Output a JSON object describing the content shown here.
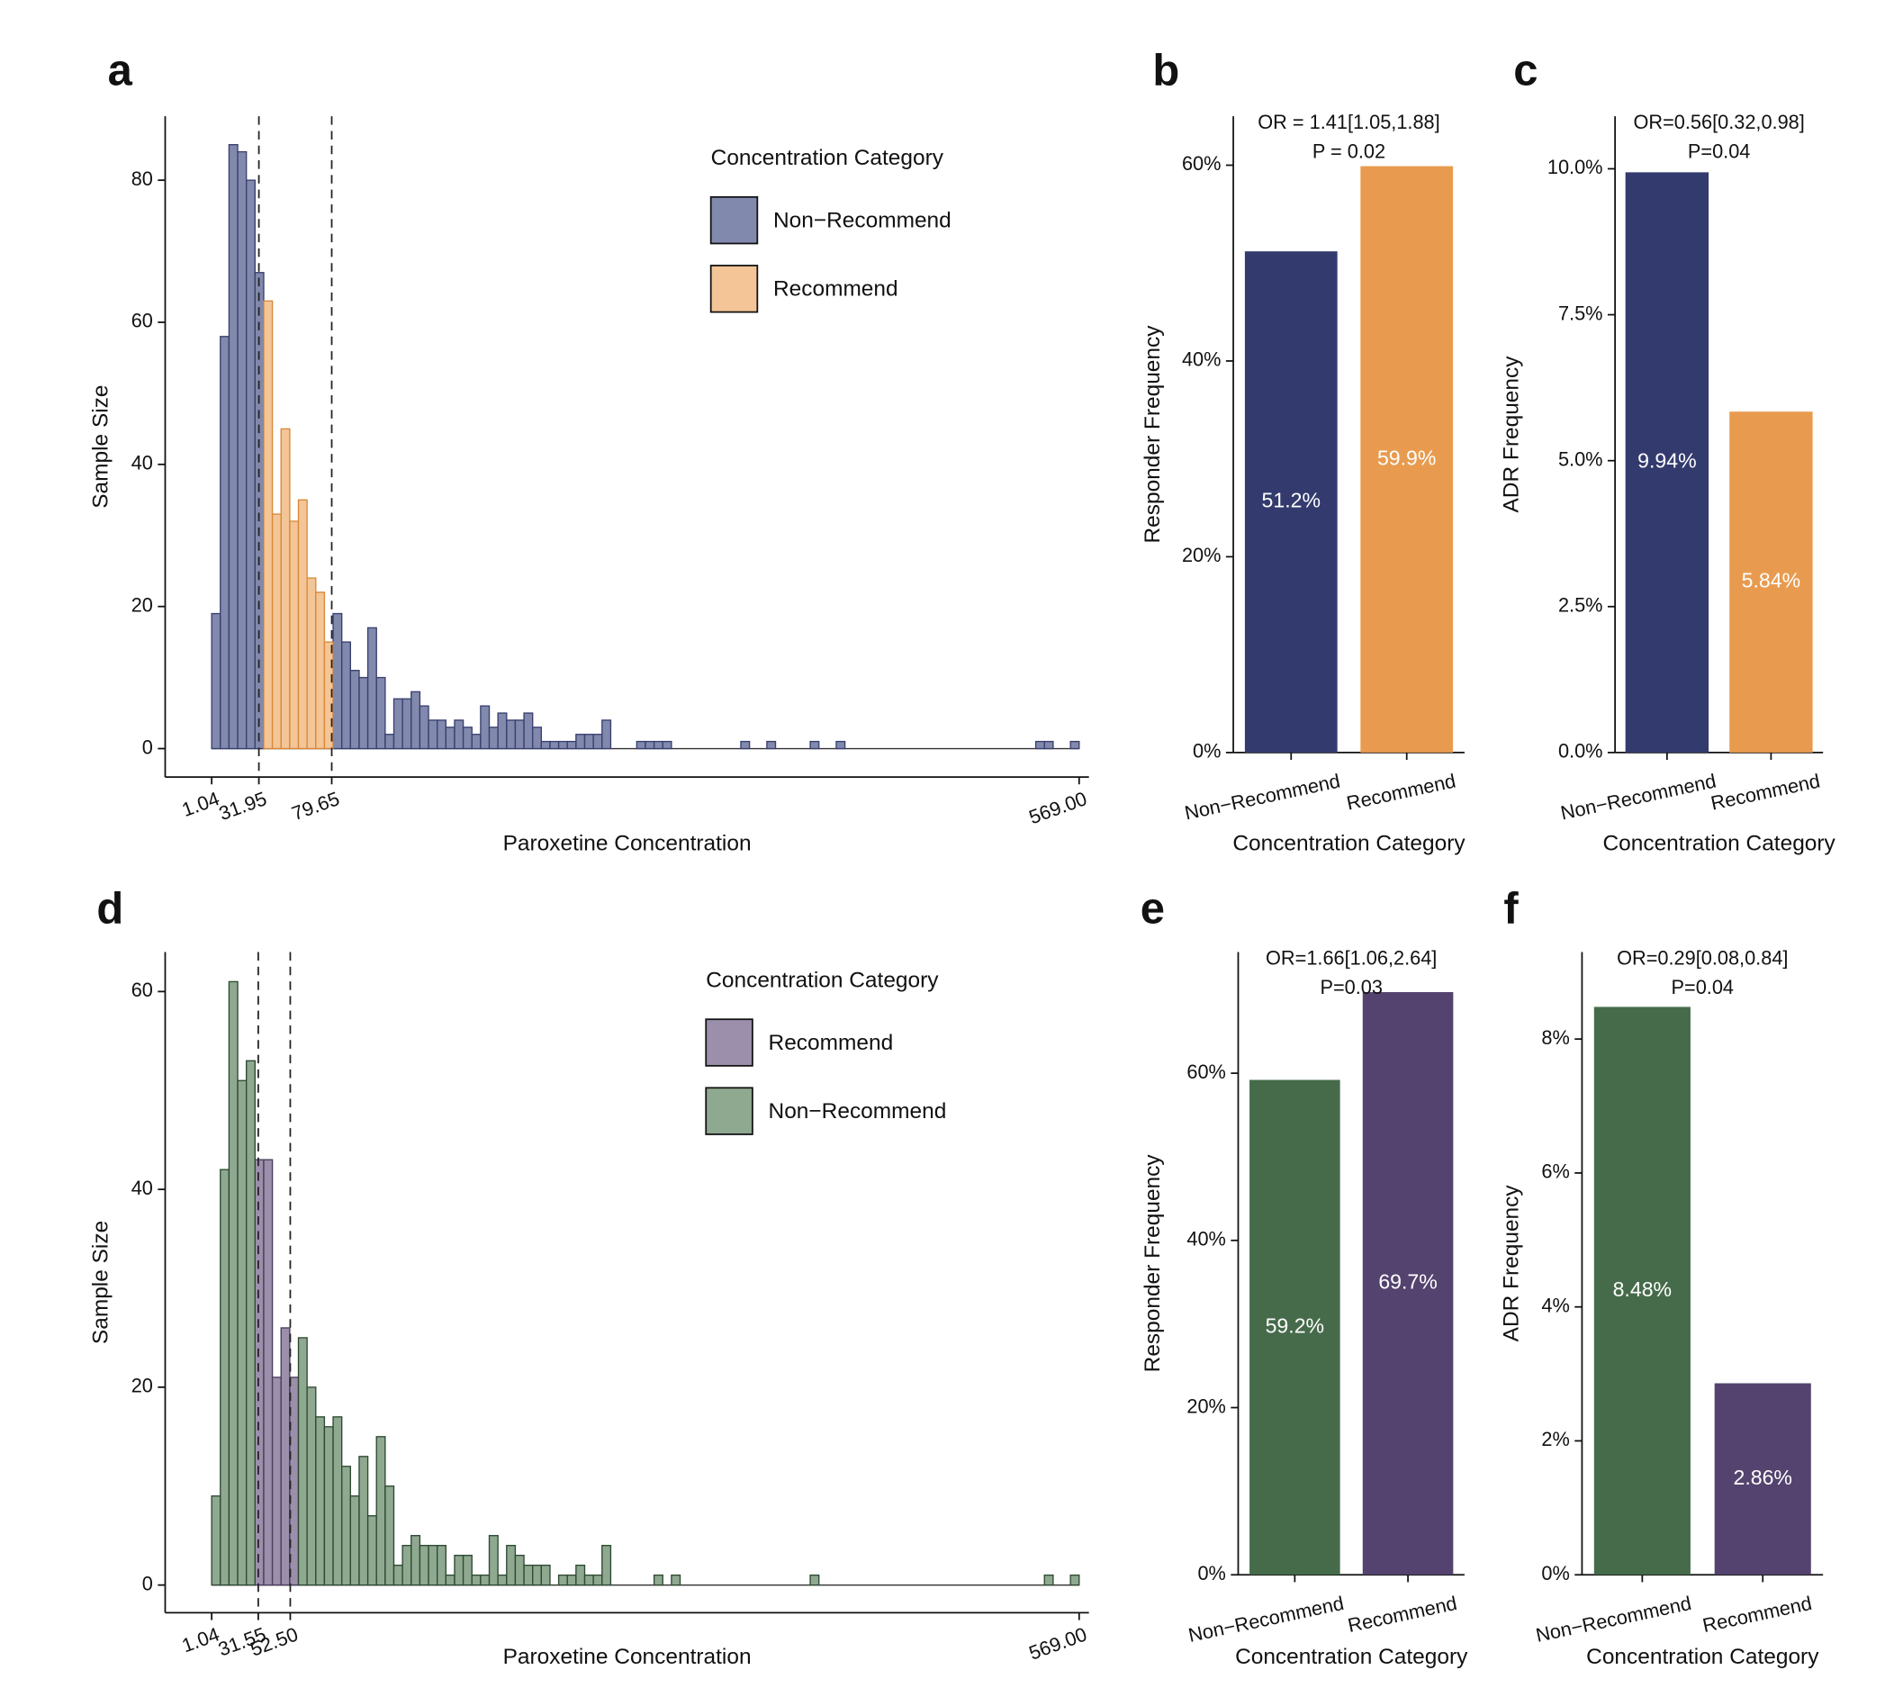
{
  "chart_data": [
    {
      "type": "histogram",
      "panel_label": "a",
      "xlabel": "Paroxetine Concentration",
      "ylabel": "Sample Size",
      "legend_title": "Concentration Category",
      "legend": "upper right",
      "cutoff_lines": true,
      "bins": [
        1.04,
        6.72,
        12.4,
        18.08,
        23.76,
        29.44,
        35.12,
        40.8,
        46.48,
        52.16,
        57.84,
        63.52,
        69.2,
        74.87,
        80.55,
        86.23,
        91.91,
        97.59,
        103.27,
        108.95,
        114.63,
        120.31,
        125.99,
        131.67,
        137.35,
        143.03,
        148.71,
        154.39,
        160.07,
        165.75,
        171.43,
        177.11,
        182.79,
        188.47,
        194.15,
        199.83,
        205.51,
        211.19,
        216.86,
        222.54,
        228.22,
        233.9,
        239.58,
        245.26,
        250.94,
        256.62,
        262.3,
        267.98,
        273.66,
        279.34,
        285.02,
        290.7,
        296.38,
        302.06,
        307.74,
        313.42,
        319.1,
        324.78,
        330.46,
        336.14,
        341.82,
        347.5,
        353.18,
        358.85,
        364.53,
        370.21,
        375.89,
        381.57,
        387.25,
        392.93,
        398.61,
        404.29,
        409.97,
        415.65,
        421.33,
        427.01,
        432.69,
        438.37,
        444.05,
        449.73,
        455.41,
        461.09,
        466.77,
        472.45,
        478.13,
        483.81,
        489.49,
        495.17,
        500.84,
        506.52,
        512.2,
        517.88,
        523.56,
        529.24,
        534.92,
        540.6,
        546.28,
        551.96,
        557.64,
        563.32,
        569.0
      ],
      "series": [
        {
          "name": "Non−Recommend",
          "color": "#8189ad",
          "edgecolor": "#3a4070",
          "values": [
            19,
            58,
            85,
            84,
            80,
            67,
            0,
            0,
            0,
            0,
            0,
            0,
            0,
            0,
            19,
            15,
            11,
            10,
            17,
            10,
            2,
            7,
            7,
            8,
            6,
            4,
            4,
            3,
            4,
            3,
            2,
            6,
            3,
            5,
            4,
            4,
            5,
            3,
            1,
            1,
            1,
            1,
            2,
            2,
            2,
            4,
            0,
            0,
            0,
            1,
            1,
            1,
            1,
            0,
            0,
            0,
            0,
            0,
            0,
            0,
            0,
            1,
            0,
            0,
            1,
            0,
            0,
            0,
            0,
            1,
            0,
            0,
            1,
            0,
            0,
            0,
            0,
            0,
            0,
            0,
            0,
            0,
            0,
            0,
            0,
            0,
            0,
            0,
            0,
            0,
            0,
            0,
            0,
            0,
            0,
            1,
            1,
            0,
            0,
            1
          ]
        },
        {
          "name": "Recommend",
          "color": "#f3c597",
          "edgecolor": "#d9893a",
          "values": [
            0,
            0,
            0,
            0,
            0,
            0,
            63,
            33,
            45,
            32,
            35,
            24,
            22,
            15,
            0,
            0,
            0,
            0,
            0,
            0,
            0,
            0,
            0,
            0,
            0,
            0,
            0,
            0,
            0,
            0,
            0,
            0,
            0,
            0,
            0,
            0,
            0,
            0,
            0,
            0,
            0,
            0,
            0,
            0,
            0,
            0,
            0,
            0,
            0,
            0,
            0,
            0,
            0,
            0,
            0,
            0,
            0,
            0,
            0,
            0,
            0,
            0,
            0,
            0,
            0,
            0,
            0,
            0,
            0,
            0,
            0,
            0,
            0,
            0,
            0,
            0,
            0,
            0,
            0,
            0,
            0,
            0,
            0,
            0,
            0,
            0,
            0,
            0,
            0,
            0,
            0,
            0,
            0,
            0,
            0,
            0,
            0,
            0,
            0,
            0
          ]
        }
      ],
      "xlim": [
        -29.4,
        575.4
      ],
      "ylim": [
        -4,
        89
      ],
      "xticks": [
        1.04,
        31.95,
        79.65,
        {
          "value": 569,
          "label": "569.00"
        }
      ],
      "yticks": [
        0,
        20,
        40,
        60,
        80
      ]
    },
    {
      "type": "bar",
      "panel_label": "b",
      "annotation": [
        "OR = 1.41[1.05,1.88]",
        "P = 0.02"
      ],
      "xlabel": "Concentration Category",
      "ylabel": "Responder Frequency",
      "categories": [
        "Non−Recommend",
        "Recommend"
      ],
      "values": [
        51.2,
        59.9
      ],
      "value_labels": [
        "51.2%",
        "59.9%"
      ],
      "colors": [
        "#333b6e",
        "#e89b4f"
      ],
      "ylim": [
        0,
        65
      ],
      "yticks": [
        {
          "value": 0,
          "label": "0%"
        },
        {
          "value": 20,
          "label": "20%"
        },
        {
          "value": 40,
          "label": "40%"
        },
        {
          "value": 60,
          "label": "60%"
        }
      ]
    },
    {
      "type": "bar",
      "panel_label": "c",
      "annotation": [
        "OR=0.56[0.32,0.98]",
        "P=0.04"
      ],
      "xlabel": "Concentration Category",
      "ylabel": "ADR Frequency",
      "categories": [
        "Non−Recommend",
        "Recommend"
      ],
      "values": [
        9.94,
        5.84
      ],
      "value_labels": [
        "9.94%",
        "5.84%"
      ],
      "colors": [
        "#333b6e",
        "#e89b4f"
      ],
      "ylim": [
        0,
        10.9
      ],
      "yticks": [
        {
          "value": 0,
          "label": "0.0%"
        },
        {
          "value": 2.5,
          "label": "2.5%"
        },
        {
          "value": 5,
          "label": "5.0%"
        },
        {
          "value": 7.5,
          "label": "7.5%"
        },
        {
          "value": 10,
          "label": "10.0%"
        }
      ]
    },
    {
      "type": "histogram",
      "panel_label": "d",
      "xlabel": "Paroxetine Concentration",
      "ylabel": "Sample Size",
      "legend_title": "Concentration Category",
      "legend": "upper right",
      "cutoff_lines": true,
      "bins": [
        1.04,
        6.72,
        12.4,
        18.08,
        23.76,
        29.44,
        35.12,
        40.8,
        46.48,
        52.16,
        57.84,
        63.52,
        69.2,
        74.87,
        80.55,
        86.23,
        91.91,
        97.59,
        103.27,
        108.95,
        114.63,
        120.31,
        125.99,
        131.67,
        137.35,
        143.03,
        148.71,
        154.39,
        160.07,
        165.75,
        171.43,
        177.11,
        182.79,
        188.47,
        194.15,
        199.83,
        205.51,
        211.19,
        216.86,
        222.54,
        228.22,
        233.9,
        239.58,
        245.26,
        250.94,
        256.62,
        262.3,
        267.98,
        273.66,
        279.34,
        285.02,
        290.7,
        296.38,
        302.06,
        307.74,
        313.42,
        319.1,
        324.78,
        330.46,
        336.14,
        341.82,
        347.5,
        353.18,
        358.85,
        364.53,
        370.21,
        375.89,
        381.57,
        387.25,
        392.93,
        398.61,
        404.29,
        409.97,
        415.65,
        421.33,
        427.01,
        432.69,
        438.37,
        444.05,
        449.73,
        455.41,
        461.09,
        466.77,
        472.45,
        478.13,
        483.81,
        489.49,
        495.17,
        500.84,
        506.52,
        512.2,
        517.88,
        523.56,
        529.24,
        534.92,
        540.6,
        546.28,
        551.96,
        557.64,
        563.32,
        569.0
      ],
      "series": [
        {
          "name": "Recommend",
          "color": "#9b8fab",
          "edgecolor": "#4a3d5e",
          "values": [
            0,
            0,
            0,
            0,
            0,
            43,
            43,
            21,
            26,
            21,
            0,
            0,
            0,
            0,
            0,
            0,
            0,
            0,
            0,
            0,
            0,
            0,
            0,
            0,
            0,
            0,
            0,
            0,
            0,
            0,
            0,
            0,
            0,
            0,
            0,
            0,
            0,
            0,
            0,
            0,
            0,
            0,
            0,
            0,
            0,
            0,
            0,
            0,
            0,
            0,
            0,
            0,
            0,
            0,
            0,
            0,
            0,
            0,
            0,
            0,
            0,
            0,
            0,
            0,
            0,
            0,
            0,
            0,
            0,
            0,
            0,
            0,
            0,
            0,
            0,
            0,
            0,
            0,
            0,
            0,
            0,
            0,
            0,
            0,
            0,
            0,
            0,
            0,
            0,
            0,
            0,
            0,
            0,
            0,
            0,
            0,
            0,
            0,
            0,
            0
          ]
        },
        {
          "name": "Non−Recommend",
          "color": "#8fa890",
          "edgecolor": "#2f4a33",
          "values": [
            9,
            42,
            61,
            51,
            53,
            0,
            0,
            0,
            0,
            0,
            25,
            20,
            17,
            16,
            17,
            12,
            9,
            13,
            7,
            15,
            10,
            2,
            4,
            5,
            4,
            4,
            4,
            1,
            3,
            3,
            1,
            1,
            5,
            1,
            4,
            3,
            2,
            2,
            2,
            0,
            1,
            1,
            2,
            1,
            1,
            4,
            0,
            0,
            0,
            0,
            0,
            1,
            0,
            1,
            0,
            0,
            0,
            0,
            0,
            0,
            0,
            0,
            0,
            0,
            0,
            0,
            0,
            0,
            0,
            1,
            0,
            0,
            0,
            0,
            0,
            0,
            0,
            0,
            0,
            0,
            0,
            0,
            0,
            0,
            0,
            0,
            0,
            0,
            0,
            0,
            0,
            0,
            0,
            0,
            0,
            0,
            1,
            0,
            0,
            1
          ]
        }
      ],
      "xlim": [
        -29.4,
        575.4
      ],
      "ylim": [
        -2.8,
        64
      ],
      "xticks": [
        1.04,
        31.55,
        {
          "value": 52.5,
          "label": "52.50"
        },
        {
          "value": 569,
          "label": "569.00"
        }
      ],
      "yticks": [
        0,
        20,
        40,
        60
      ]
    },
    {
      "type": "bar",
      "panel_label": "e",
      "annotation": [
        "OR=1.66[1.06,2.64]",
        "P=0.03"
      ],
      "xlabel": "Concentration Category",
      "ylabel": "Responder Frequency",
      "categories": [
        "Non−Recommend",
        "Recommend"
      ],
      "values": [
        59.2,
        69.7
      ],
      "value_labels": [
        "59.2%",
        "69.7%"
      ],
      "colors": [
        "#466b4a",
        "#54436e"
      ],
      "ylim": [
        0,
        74.5
      ],
      "yticks": [
        {
          "value": 0,
          "label": "0%"
        },
        {
          "value": 20,
          "label": "20%"
        },
        {
          "value": 40,
          "label": "40%"
        },
        {
          "value": 60,
          "label": "60%"
        }
      ]
    },
    {
      "type": "bar",
      "panel_label": "f",
      "annotation": [
        "OR=0.29[0.08,0.84]",
        "P=0.04"
      ],
      "xlabel": "Concentration Category",
      "ylabel": "ADR Frequency",
      "categories": [
        "Non−Recommend",
        "Recommend"
      ],
      "values": [
        8.48,
        2.86
      ],
      "value_labels": [
        "8.48%",
        "2.86%"
      ],
      "colors": [
        "#466b4a",
        "#54436e"
      ],
      "ylim": [
        0,
        9.3
      ],
      "yticks": [
        {
          "value": 0,
          "label": "0%"
        },
        {
          "value": 2,
          "label": "2%"
        },
        {
          "value": 4,
          "label": "4%"
        },
        {
          "value": 6,
          "label": "6%"
        },
        {
          "value": 8,
          "label": "8%"
        }
      ]
    }
  ]
}
